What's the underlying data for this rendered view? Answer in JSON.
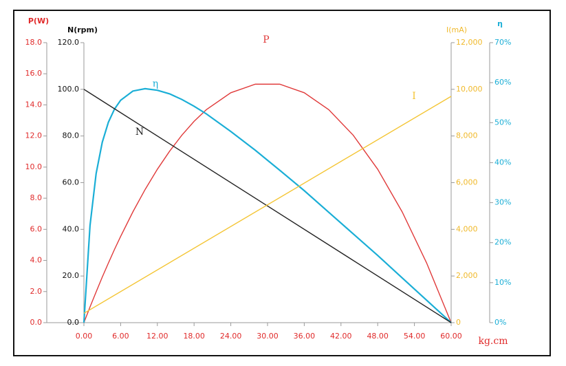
{
  "chart_data": {
    "type": "line",
    "xlabel": "kg.cm",
    "xlim": [
      0,
      60
    ],
    "xticks": [
      {
        "value": 0,
        "label": "0.00"
      },
      {
        "value": 6,
        "label": "6.00"
      },
      {
        "value": 12,
        "label": "12.00"
      },
      {
        "value": 18,
        "label": "18.00"
      },
      {
        "value": 24,
        "label": "24.00"
      },
      {
        "value": 30,
        "label": "30.00"
      },
      {
        "value": 36,
        "label": "36.00"
      },
      {
        "value": 42,
        "label": "42.00"
      },
      {
        "value": 48,
        "label": "48.00"
      },
      {
        "value": 54,
        "label": "54.00"
      },
      {
        "value": 60,
        "label": "60.00"
      }
    ],
    "x_color": "#e02a2a",
    "y_axes": [
      {
        "label": "P(W)",
        "color": "#e02a2a",
        "lim": [
          0,
          18
        ],
        "ticks": [
          {
            "value": 0,
            "label": "0.0"
          },
          {
            "value": 2,
            "label": "2.0"
          },
          {
            "value": 4,
            "label": "4.0"
          },
          {
            "value": 6,
            "label": "6.0"
          },
          {
            "value": 8,
            "label": "8.0"
          },
          {
            "value": 10,
            "label": "10.0"
          },
          {
            "value": 12,
            "label": "12.0"
          },
          {
            "value": 14,
            "label": "14.0"
          },
          {
            "value": 16,
            "label": "16.0"
          },
          {
            "value": 18,
            "label": "18.0"
          }
        ]
      },
      {
        "label": "N(rpm)",
        "color": "#111111",
        "lim": [
          0,
          120
        ],
        "ticks": [
          {
            "value": 0,
            "label": "0.0"
          },
          {
            "value": 20,
            "label": "20.0"
          },
          {
            "value": 40,
            "label": "40.0"
          },
          {
            "value": 60,
            "label": "60.0"
          },
          {
            "value": 80,
            "label": "80.0"
          },
          {
            "value": 100,
            "label": "100.0"
          },
          {
            "value": 120,
            "label": "120.0"
          }
        ]
      },
      {
        "label": "I(mA)",
        "color": "#f0b92a",
        "lim": [
          0,
          12000
        ],
        "ticks": [
          0,
          {
            "value": 2000,
            "label": "2,000"
          },
          {
            "value": 4000,
            "label": "4,000"
          },
          {
            "value": 6000,
            "label": "6,000"
          },
          {
            "value": 8000,
            "label": "8,000"
          },
          {
            "value": 10000,
            "label": "10,000"
          },
          {
            "value": 12000,
            "label": "12,000"
          }
        ]
      },
      {
        "label": "η",
        "color": "#1aaed6",
        "lim": [
          0,
          70
        ],
        "ticks": [
          {
            "value": 0,
            "label": "0%"
          },
          {
            "value": 10,
            "label": "10%"
          },
          {
            "value": 20,
            "label": "20%"
          },
          {
            "value": 30,
            "label": "30%"
          },
          {
            "value": 40,
            "label": "40%"
          },
          {
            "value": 50,
            "label": "50%"
          },
          {
            "value": 60,
            "label": "60%"
          },
          {
            "value": 70,
            "label": "70%"
          }
        ]
      }
    ],
    "series": [
      {
        "name": "P",
        "color": "#e03a3a",
        "axis": 0,
        "x": [
          0,
          1,
          2,
          3,
          4,
          5,
          6,
          8,
          10,
          12,
          14,
          16,
          18,
          20,
          24,
          28,
          32,
          36,
          40,
          44,
          48,
          52,
          56,
          60
        ],
        "values": [
          0,
          1.01,
          1.98,
          2.93,
          3.83,
          4.71,
          5.54,
          7.12,
          8.56,
          9.86,
          11.02,
          12.05,
          12.94,
          13.69,
          14.78,
          15.33,
          15.33,
          14.78,
          13.69,
          12.05,
          9.86,
          7.12,
          3.83,
          0
        ]
      },
      {
        "name": "η",
        "color": "#1aaed6",
        "axis": 3,
        "x": [
          0,
          1,
          2,
          3,
          4,
          5,
          6,
          8,
          10,
          12,
          14,
          16,
          18,
          20,
          24,
          28,
          32,
          36,
          40,
          44,
          48,
          52,
          56,
          60
        ],
        "values": [
          0,
          24.3,
          37.3,
          45.1,
          50.1,
          53.4,
          55.6,
          57.9,
          58.5,
          58.1,
          57.2,
          55.8,
          54.1,
          52.2,
          47.8,
          43.1,
          38.1,
          33.0,
          27.6,
          22.2,
          16.8,
          11.2,
          5.6,
          0
        ]
      },
      {
        "name": "N",
        "color": "#222222",
        "axis": 1,
        "x": [
          0,
          60
        ],
        "values": [
          100,
          0
        ]
      },
      {
        "name": "I",
        "color": "#f4c534",
        "axis": 2,
        "x": [
          0,
          60
        ],
        "values": [
          400,
          9700
        ]
      }
    ]
  }
}
